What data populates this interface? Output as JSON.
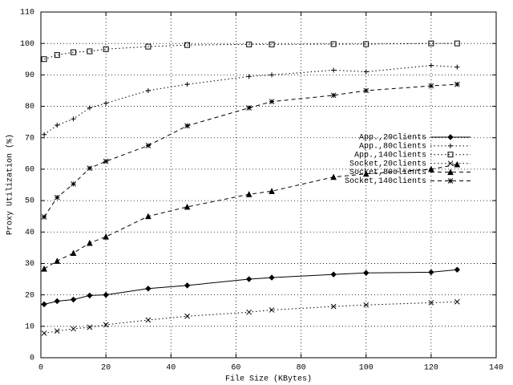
{
  "chart_data": {
    "type": "line",
    "xlabel": "File Size (KBytes)",
    "ylabel": "Proxy Utilization (%)",
    "x": [
      1,
      5,
      10,
      15,
      20,
      33,
      45,
      64,
      71,
      90,
      100,
      120,
      128
    ],
    "xlim": [
      0,
      140
    ],
    "xticks": [
      0,
      20,
      40,
      60,
      80,
      100,
      120,
      140
    ],
    "ylim": [
      0,
      110
    ],
    "yticks": [
      0,
      10,
      20,
      30,
      40,
      50,
      60,
      70,
      80,
      90,
      100,
      110
    ],
    "grid": true,
    "legend": "right",
    "series": [
      {
        "name": "App.,20clients",
        "color": "#000000",
        "style": "solid",
        "marker": "diamond",
        "values": [
          17,
          18,
          18.5,
          19.8,
          20,
          22,
          23,
          25,
          25.5,
          26.5,
          27,
          27.2,
          28
        ]
      },
      {
        "name": "App.,80clients",
        "color": "#000000",
        "style": "dotted",
        "marker": "plus",
        "values": [
          71,
          74,
          76,
          79.5,
          81,
          85,
          87,
          89.5,
          90,
          91.5,
          91,
          93,
          92.5
        ]
      },
      {
        "name": "App.,140clients",
        "color": "#000000",
        "style": "dotted",
        "marker": "square",
        "values": [
          95,
          96.3,
          97.2,
          97.5,
          98.2,
          99,
          99.5,
          99.7,
          99.7,
          99.8,
          99.8,
          100,
          100
        ]
      },
      {
        "name": "Socket,20clients",
        "color": "#000000",
        "style": "dotted",
        "marker": "cross",
        "values": [
          7.8,
          8.5,
          9.2,
          9.7,
          10.5,
          12,
          13.2,
          14.5,
          15.2,
          16.3,
          16.8,
          17.5,
          17.8
        ]
      },
      {
        "name": "Socket,80clients",
        "color": "#000000",
        "style": "dashed",
        "marker": "triangle",
        "values": [
          28.3,
          30.8,
          33.3,
          36.5,
          38.5,
          45,
          48,
          52,
          53,
          57.5,
          58.5,
          60,
          61.5
        ]
      },
      {
        "name": "Socket,140clients",
        "color": "#000000",
        "style": "dashed",
        "marker": "star",
        "values": [
          44.8,
          51,
          55.3,
          60.3,
          62.5,
          67.5,
          73.8,
          79.5,
          81.5,
          83.5,
          85,
          86.5,
          87
        ]
      }
    ]
  }
}
